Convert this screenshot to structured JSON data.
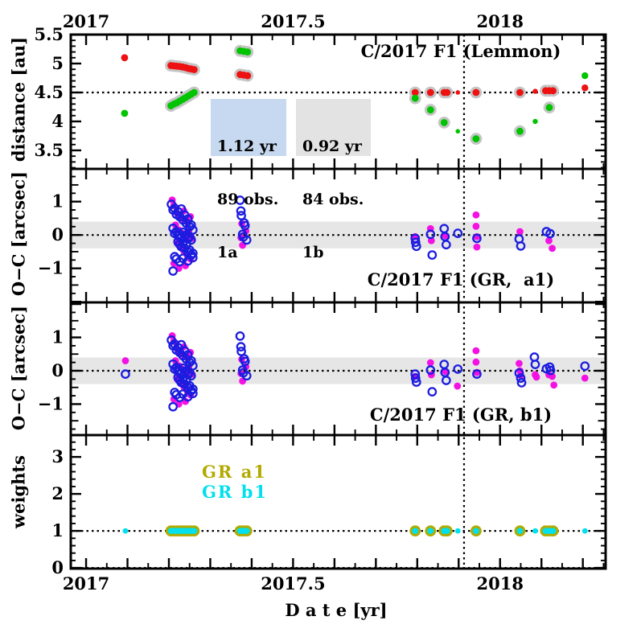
{
  "labels": {
    "note": ""
  },
  "colors": {
    "halo": "#c5c5c5",
    "band": "#e6e6e6",
    "frame": "#000000",
    "red": "#ee1111",
    "green": "#00c400",
    "magenta": "#f311e3",
    "blue": "#1c1ce0",
    "olive": "#b2aa00",
    "cyan": "#00e0ee"
  },
  "boxes": {
    "a": {
      "line1": "1.12 yr",
      "line2": "89 obs.",
      "line3": "1a",
      "bg": "#c7d9f0"
    },
    "b": {
      "line1": "0.92 yr",
      "line2": "84 obs.",
      "line3": "1b",
      "bg": "#e3e3e3"
    }
  },
  "legend": {
    "a1": {
      "label": "GR a1",
      "color": "#b2aa00"
    },
    "b1": {
      "label": "GR b1",
      "color": "#00e0ee"
    }
  },
  "x_axis": {
    "lim": [
      2016.963,
      2018.255
    ],
    "tick_labels": [
      [
        2017,
        "2017"
      ],
      [
        2017.5,
        "2017.5"
      ],
      [
        2018,
        "2018"
      ]
    ],
    "major": 0.1,
    "minor": 0.05,
    "label": "D a t e [yr]",
    "vline": 2017.913
  },
  "clusters": {
    "a_m": [
      [
        2017.208,
        1.05
      ],
      [
        2017.212,
        0.88
      ],
      [
        2017.22,
        0.65
      ],
      [
        2017.228,
        0.5
      ],
      [
        2017.236,
        0.72
      ],
      [
        2017.244,
        0.4
      ],
      [
        2017.252,
        0.55
      ],
      [
        2017.216,
        0.3
      ],
      [
        2017.224,
        0.15
      ],
      [
        2017.232,
        0.05
      ],
      [
        2017.24,
        -0.05
      ],
      [
        2017.248,
        0.1
      ],
      [
        2017.256,
        -0.1
      ],
      [
        2017.22,
        -0.25
      ],
      [
        2017.228,
        -0.38
      ],
      [
        2017.236,
        -0.48
      ],
      [
        2017.244,
        -0.6
      ],
      [
        2017.252,
        -0.72
      ],
      [
        2017.212,
        -0.85
      ],
      [
        2017.24,
        -0.92
      ],
      [
        2017.224,
        -1.0
      ]
    ],
    "a_b": [
      [
        2017.206,
        0.92
      ],
      [
        2017.21,
        0.75
      ],
      [
        2017.214,
        0.8
      ],
      [
        2017.218,
        0.62
      ],
      [
        2017.222,
        0.7
      ],
      [
        2017.226,
        0.55
      ],
      [
        2017.23,
        0.78
      ],
      [
        2017.234,
        0.45
      ],
      [
        2017.238,
        0.6
      ],
      [
        2017.242,
        0.35
      ],
      [
        2017.246,
        0.48
      ],
      [
        2017.25,
        0.25
      ],
      [
        2017.254,
        0.3
      ],
      [
        2017.258,
        0.15
      ],
      [
        2017.21,
        0.2
      ],
      [
        2017.214,
        0.05
      ],
      [
        2017.218,
        0.1
      ],
      [
        2017.222,
        -0.02
      ],
      [
        2017.226,
        0.02
      ],
      [
        2017.23,
        -0.08
      ],
      [
        2017.234,
        0.08
      ],
      [
        2017.238,
        -0.05
      ],
      [
        2017.242,
        0.0
      ],
      [
        2017.246,
        -0.12
      ],
      [
        2017.25,
        -0.05
      ],
      [
        2017.254,
        -0.15
      ],
      [
        2017.222,
        -0.2
      ],
      [
        2017.226,
        -0.28
      ],
      [
        2017.23,
        -0.35
      ],
      [
        2017.234,
        -0.25
      ],
      [
        2017.238,
        -0.4
      ],
      [
        2017.242,
        -0.3
      ],
      [
        2017.246,
        -0.5
      ],
      [
        2017.25,
        -0.45
      ],
      [
        2017.254,
        -0.6
      ],
      [
        2017.258,
        -0.55
      ],
      [
        2017.214,
        -0.65
      ],
      [
        2017.218,
        -0.72
      ],
      [
        2017.226,
        -0.8
      ],
      [
        2017.234,
        -0.7
      ],
      [
        2017.246,
        -0.78
      ],
      [
        2017.258,
        -0.68
      ],
      [
        2017.21,
        -1.08
      ]
    ],
    "b_m": [
      [
        2017.376,
        0.34
      ],
      [
        2017.374,
        -0.08
      ],
      [
        2017.378,
        -0.31
      ],
      [
        2017.386,
        0.12
      ]
    ],
    "b_b": [
      [
        2017.372,
        1.04
      ],
      [
        2017.374,
        0.72
      ],
      [
        2017.375,
        0.58
      ],
      [
        2017.382,
        0.36
      ],
      [
        2017.384,
        0.28
      ],
      [
        2017.378,
        0.02
      ],
      [
        2017.38,
        -0.06
      ],
      [
        2017.388,
        -0.15
      ]
    ]
  },
  "chart_data": [
    {
      "type": "scatter",
      "panel": "distance",
      "title": "C/2017 F1 (Lemmon)",
      "ylabel": "distance [au]",
      "ylim": [
        3.18,
        5.5
      ],
      "ytick_labels": [
        [
          3.5,
          "3.5"
        ],
        [
          4,
          "4"
        ],
        [
          4.5,
          "4.5"
        ],
        [
          5,
          "5"
        ],
        [
          5.5,
          "5.5"
        ]
      ],
      "ytick_major": 0.5,
      "ytick_minor": 0.1,
      "hlines": [
        4.5
      ],
      "series": [
        {
          "name": "red-haloed",
          "color": "#ee1111",
          "halo": true,
          "r": 4.4,
          "points": [
            [
              2017.205,
              4.965
            ],
            [
              2017.212,
              4.96
            ],
            [
              2017.219,
              4.955
            ],
            [
              2017.226,
              4.95
            ],
            [
              2017.233,
              4.94
            ],
            [
              2017.24,
              4.93
            ],
            [
              2017.247,
              4.915
            ],
            [
              2017.254,
              4.905
            ],
            [
              2017.261,
              4.895
            ],
            [
              2017.372,
              4.81
            ],
            [
              2017.381,
              4.8
            ],
            [
              2017.39,
              4.79
            ],
            [
              2017.795,
              4.5
            ],
            [
              2017.832,
              4.5
            ],
            [
              2017.865,
              4.5
            ],
            [
              2017.872,
              4.5
            ],
            [
              2017.942,
              4.5
            ],
            [
              2018.048,
              4.5
            ],
            [
              2018.11,
              4.53
            ],
            [
              2018.119,
              4.53
            ],
            [
              2018.128,
              4.53
            ]
          ]
        },
        {
          "name": "red-plain",
          "color": "#ee1111",
          "r": 4.4,
          "points": [
            [
              2017.093,
              5.1,
              4.4
            ],
            [
              2017.898,
              4.5,
              2.8
            ],
            [
              2018.085,
              4.52,
              3.2
            ],
            [
              2018.205,
              4.58,
              4.2
            ]
          ]
        },
        {
          "name": "green-haloed",
          "color": "#00c400",
          "halo": true,
          "r": 4.4,
          "points": [
            [
              2017.205,
              4.27
            ],
            [
              2017.212,
              4.3
            ],
            [
              2017.219,
              4.32
            ],
            [
              2017.226,
              4.35
            ],
            [
              2017.233,
              4.38
            ],
            [
              2017.24,
              4.41
            ],
            [
              2017.247,
              4.44
            ],
            [
              2017.254,
              4.47
            ],
            [
              2017.261,
              4.5
            ],
            [
              2017.372,
              5.22
            ],
            [
              2017.381,
              5.21
            ],
            [
              2017.39,
              5.2
            ],
            [
              2017.795,
              4.4
            ],
            [
              2017.832,
              4.2
            ],
            [
              2017.865,
              3.98
            ],
            [
              2017.942,
              3.7
            ],
            [
              2018.048,
              3.83
            ],
            [
              2018.119,
              4.24
            ]
          ]
        },
        {
          "name": "green-plain",
          "color": "#00c400",
          "r": 4.4,
          "points": [
            [
              2017.093,
              4.14,
              4.4
            ],
            [
              2017.898,
              3.83,
              2.8
            ],
            [
              2018.085,
              4.0,
              3.2
            ],
            [
              2018.205,
              4.79,
              4.2
            ]
          ]
        }
      ]
    },
    {
      "type": "scatter",
      "panel": "oc-a1",
      "title": "C/2017 F1 (GR,  a1)",
      "ylabel": "O−C [arcsec]",
      "ylim": [
        -2.02,
        1.98
      ],
      "ytick_labels": [
        [
          -1,
          "−1"
        ],
        [
          0,
          "0"
        ],
        [
          1,
          "1"
        ]
      ],
      "ytick_major": 1,
      "ytick_minor": 0.25,
      "ymed": 0.5,
      "band": [
        -0.4,
        0.4
      ],
      "hlines": [
        0
      ],
      "series": [
        {
          "name": "oc-magenta",
          "color": "#f311e3",
          "r": 4.4,
          "include": [
            "a_m",
            "b_m"
          ],
          "points": [
            [
              2017.795,
              -0.05
            ],
            [
              2017.832,
              0.19
            ],
            [
              2017.834,
              -0.17
            ],
            [
              2017.868,
              -0.02
            ],
            [
              2017.942,
              0.6
            ],
            [
              2017.942,
              0.26
            ],
            [
              2017.944,
              -0.05
            ],
            [
              2017.944,
              -0.36
            ],
            [
              2018.048,
              0.1
            ],
            [
              2018.118,
              -0.17
            ],
            [
              2018.126,
              -0.4
            ]
          ]
        },
        {
          "name": "oc-blue-open",
          "color": "#1c1ce0",
          "open": true,
          "r": 4.7,
          "include": [
            "a_b",
            "b_b"
          ],
          "points": [
            [
              2017.795,
              -0.1
            ],
            [
              2017.796,
              -0.22
            ],
            [
              2017.798,
              -0.34
            ],
            [
              2017.832,
              0.02
            ],
            [
              2017.836,
              -0.6
            ],
            [
              2017.865,
              0.19
            ],
            [
              2017.867,
              -0.05
            ],
            [
              2017.87,
              -0.29
            ],
            [
              2017.898,
              0.05
            ],
            [
              2017.944,
              -0.1
            ],
            [
              2018.046,
              -0.12
            ],
            [
              2018.05,
              -0.33
            ],
            [
              2018.112,
              0.1
            ],
            [
              2018.121,
              0.04
            ]
          ]
        }
      ]
    },
    {
      "type": "scatter",
      "panel": "oc-b1",
      "title": "C/2017 F1 (GR, b1)",
      "ylabel": "O−C [arcsec]",
      "ylim": [
        -1.93,
        2.05
      ],
      "ytick_labels": [
        [
          -1,
          "−1"
        ],
        [
          0,
          "0"
        ],
        [
          1,
          "1"
        ]
      ],
      "ytick_major": 1,
      "ytick_minor": 0.25,
      "ymed": 0.5,
      "band": [
        -0.4,
        0.4
      ],
      "hlines": [
        0
      ],
      "series": [
        {
          "name": "oc-magenta",
          "color": "#f311e3",
          "r": 4.4,
          "include": [
            "a_m",
            "b_m"
          ],
          "points": [
            [
              2017.095,
              0.3
            ],
            [
              2017.795,
              -0.17
            ],
            [
              2017.832,
              0.24
            ],
            [
              2017.834,
              -0.12
            ],
            [
              2017.868,
              -0.02
            ],
            [
              2017.897,
              -0.46
            ],
            [
              2017.942,
              0.6
            ],
            [
              2017.942,
              0.26
            ],
            [
              2017.944,
              -0.05
            ],
            [
              2018.046,
              0.22
            ],
            [
              2018.048,
              0.0
            ],
            [
              2018.05,
              -0.14
            ],
            [
              2018.085,
              -0.12
            ],
            [
              2018.088,
              -0.19
            ],
            [
              2018.118,
              -0.12
            ],
            [
              2018.126,
              -0.17
            ],
            [
              2018.13,
              -0.43
            ],
            [
              2018.205,
              -0.22
            ]
          ]
        },
        {
          "name": "oc-blue-open",
          "color": "#1c1ce0",
          "open": true,
          "r": 4.7,
          "include": [
            "a_b",
            "b_b"
          ],
          "points": [
            [
              2017.095,
              -0.1
            ],
            [
              2017.795,
              -0.1
            ],
            [
              2017.796,
              -0.22
            ],
            [
              2017.798,
              -0.34
            ],
            [
              2017.832,
              0.02
            ],
            [
              2017.836,
              -0.63
            ],
            [
              2017.865,
              0.19
            ],
            [
              2017.867,
              -0.05
            ],
            [
              2017.87,
              -0.29
            ],
            [
              2017.898,
              0.05
            ],
            [
              2017.944,
              -0.1
            ],
            [
              2018.046,
              -0.07
            ],
            [
              2018.05,
              -0.22
            ],
            [
              2018.052,
              -0.36
            ],
            [
              2018.083,
              0.41
            ],
            [
              2018.085,
              0.19
            ],
            [
              2018.112,
              0.06
            ],
            [
              2018.12,
              0.11
            ],
            [
              2018.122,
              0.01
            ],
            [
              2018.205,
              0.14
            ]
          ]
        }
      ]
    },
    {
      "type": "scatter",
      "panel": "weights",
      "title": "",
      "ylabel": "weights",
      "ylim": [
        -0.02,
        3.59
      ],
      "ytick_labels": [
        [
          0,
          "0"
        ],
        [
          1,
          "1"
        ],
        [
          2,
          "2"
        ],
        [
          3,
          "3"
        ]
      ],
      "ytick_major": 1,
      "ytick_minor": 0.2,
      "hlines": [
        0,
        1
      ],
      "series": [
        {
          "name": "weights-gr-a1-and-b1",
          "ring_color": "#b2aa00",
          "ring_r": 6.9,
          "color": "#00e0ee",
          "r": 3.9,
          "weight": 1,
          "points_t": [
            2017.205,
            2017.213,
            2017.221,
            2017.229,
            2017.237,
            2017.245,
            2017.253,
            2017.261,
            2017.372,
            2017.38,
            2017.388,
            2017.795,
            2017.832,
            2017.865,
            2017.872,
            2017.942,
            2018.048,
            2018.11,
            2018.119,
            2018.128
          ]
        },
        {
          "name": "weights-gr-b1-only",
          "color": "#00e0ee",
          "r": 3.4,
          "weight": 1,
          "points_t": [
            2017.095,
            2017.898,
            2018.085,
            2018.205
          ]
        }
      ]
    }
  ]
}
